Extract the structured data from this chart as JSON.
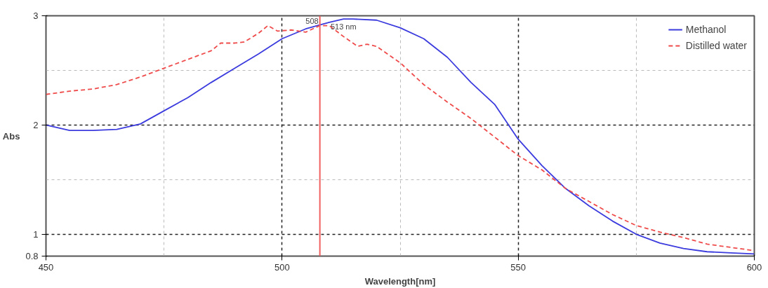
{
  "chart_data": {
    "type": "line",
    "xlabel": "Wavelength[nm]",
    "ylabel": "Abs",
    "xlim": [
      450,
      600
    ],
    "ylim": [
      0.8,
      3
    ],
    "xticks": [
      450,
      {
        "value": 475,
        "label": null
      },
      500,
      {
        "value": 525,
        "label": null
      },
      550,
      {
        "value": 575,
        "label": null
      },
      600
    ],
    "yticks": [
      0.8,
      1,
      {
        "value": 1.5,
        "label": null
      },
      2,
      {
        "value": 2.5,
        "label": null
      },
      3
    ],
    "grid": true,
    "legend": "top right",
    "series": [
      {
        "name": "Methanol",
        "color": "#3b3bde",
        "line_style": "solid",
        "x": [
          450,
          455,
          460,
          465,
          470,
          475,
          480,
          485,
          490,
          495,
          500,
          505,
          510,
          513,
          515,
          520,
          525,
          530,
          535,
          540,
          545,
          550,
          555,
          560,
          565,
          570,
          575,
          580,
          585,
          590,
          595,
          600
        ],
        "values": [
          2.0,
          1.95,
          1.95,
          1.96,
          2.01,
          2.13,
          2.25,
          2.39,
          2.52,
          2.65,
          2.79,
          2.88,
          2.94,
          2.97,
          2.97,
          2.96,
          2.89,
          2.79,
          2.62,
          2.39,
          2.19,
          1.87,
          1.63,
          1.42,
          1.26,
          1.12,
          1.0,
          0.92,
          0.87,
          0.84,
          0.83,
          0.82
        ]
      },
      {
        "name": "Distilled water",
        "color": "#ef4b4b",
        "line_style": "dashed",
        "x": [
          450,
          455,
          460,
          465,
          470,
          475,
          480,
          485,
          487,
          490,
          492,
          495,
          497,
          499,
          502,
          505,
          508,
          510,
          513,
          516,
          518,
          520,
          525,
          530,
          535,
          540,
          545,
          550,
          555,
          560,
          565,
          570,
          575,
          580,
          585,
          590,
          595,
          600
        ],
        "values": [
          2.28,
          2.31,
          2.33,
          2.37,
          2.44,
          2.52,
          2.6,
          2.68,
          2.75,
          2.75,
          2.76,
          2.84,
          2.91,
          2.86,
          2.87,
          2.85,
          2.91,
          2.91,
          2.81,
          2.72,
          2.74,
          2.72,
          2.57,
          2.37,
          2.21,
          2.06,
          1.89,
          1.72,
          1.59,
          1.42,
          1.3,
          1.18,
          1.08,
          1.02,
          0.97,
          0.91,
          0.88,
          0.85
        ]
      }
    ],
    "ref_lines": [
      {
        "axis": "x",
        "value": 508,
        "label": "508",
        "color": "#f06060"
      }
    ],
    "annotations": [
      {
        "text": "513 nm",
        "x": 513,
        "y": 3
      }
    ]
  }
}
